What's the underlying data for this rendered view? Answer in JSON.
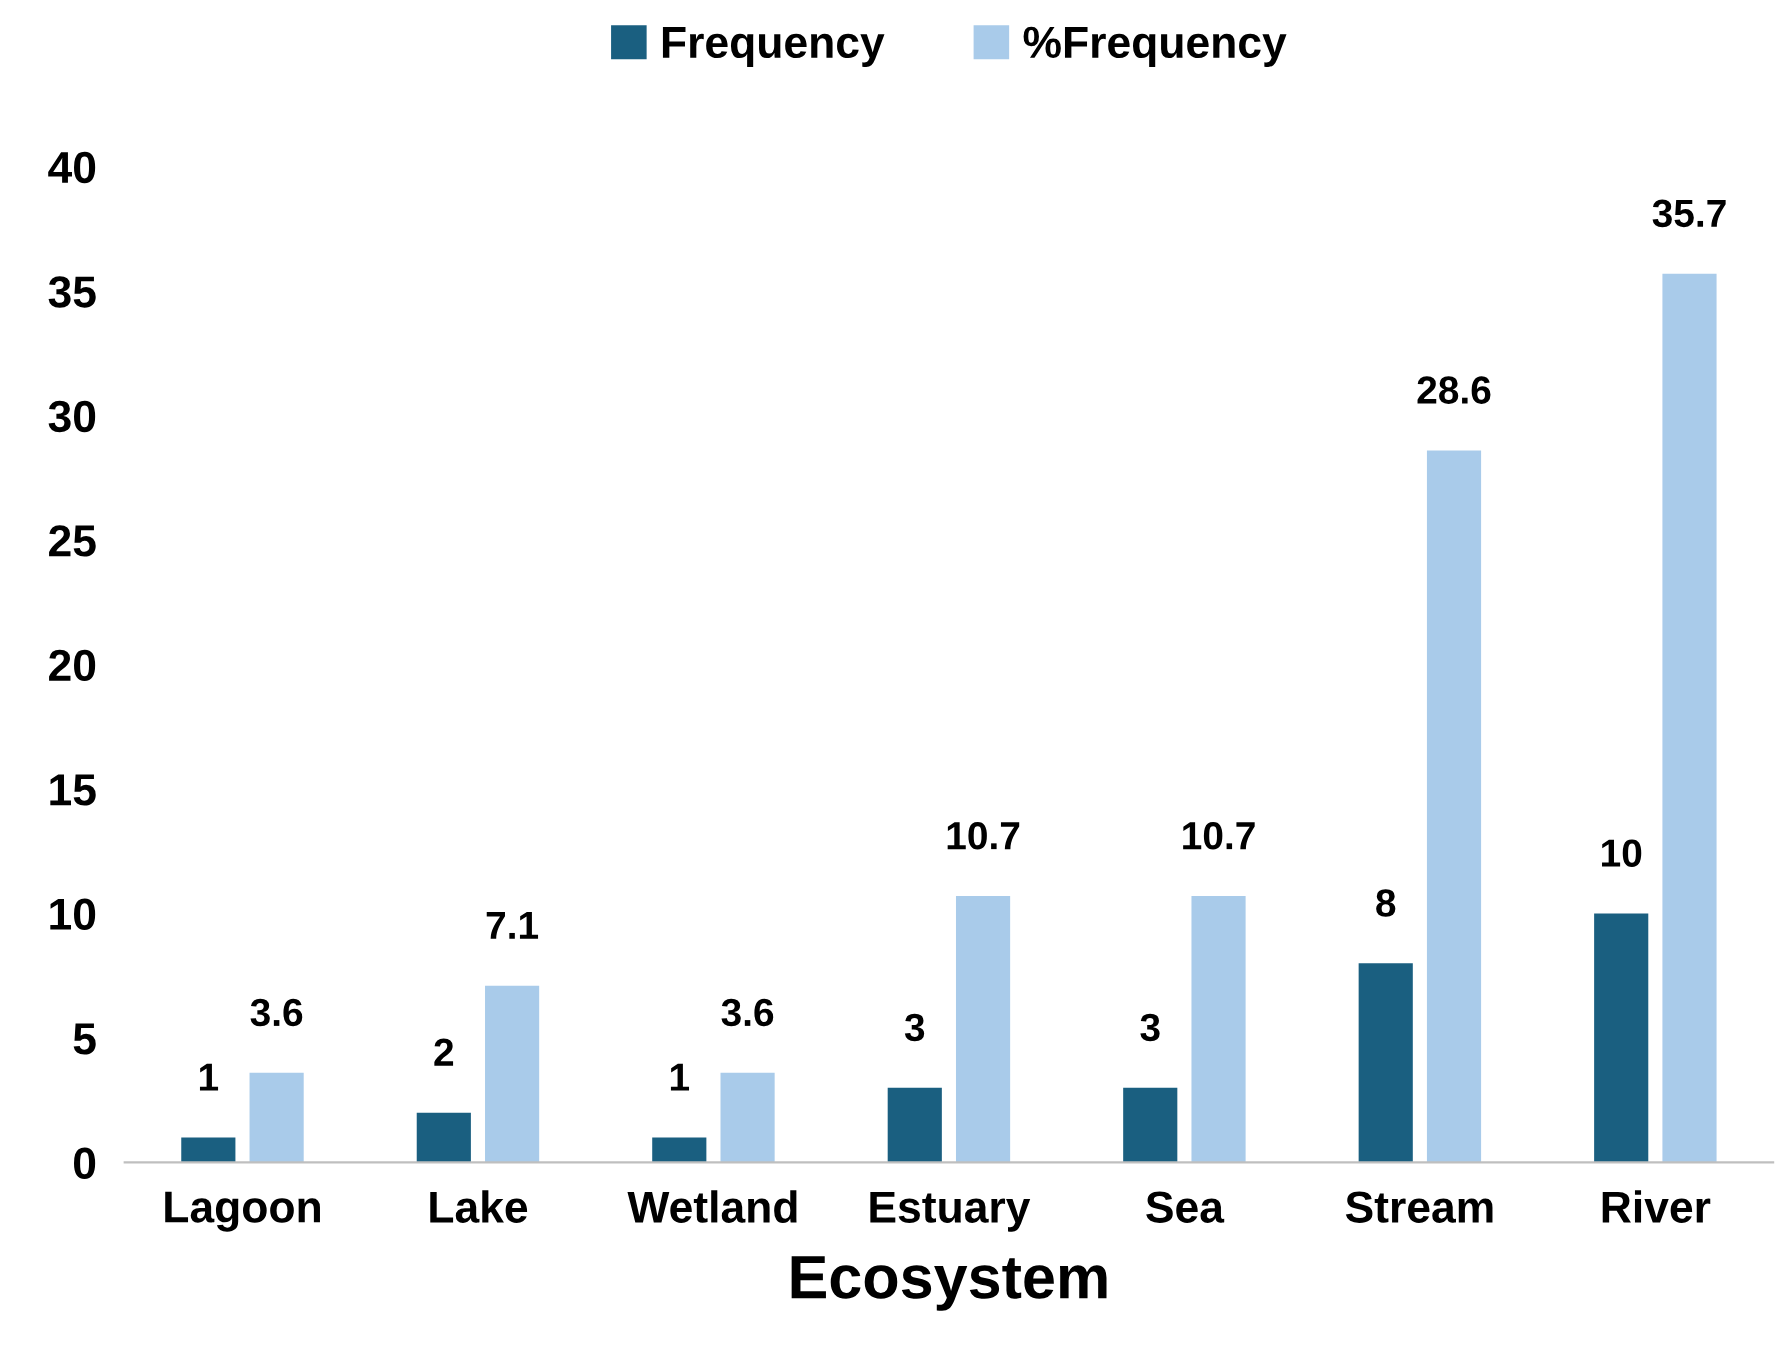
{
  "chart_data": {
    "type": "bar",
    "xlabel": "Ecosystem",
    "categories": [
      "Lagoon",
      "Lake",
      "Wetland",
      "Estuary",
      "Sea",
      "Stream",
      "River"
    ],
    "series": [
      {
        "name": "Frequency",
        "color": "#1a5f80",
        "values": [
          1,
          2,
          1,
          3,
          3,
          8,
          10
        ]
      },
      {
        "name": "%Frequency",
        "color": "#a9cbea",
        "values": [
          3.6,
          7.1,
          3.6,
          10.7,
          10.7,
          28.6,
          35.7
        ]
      }
    ],
    "ylim": [
      0,
      40
    ],
    "yticks": [
      0,
      5,
      10,
      15,
      20,
      25,
      30,
      35,
      40
    ],
    "grid": false,
    "legend": "top",
    "data_labels": true
  }
}
